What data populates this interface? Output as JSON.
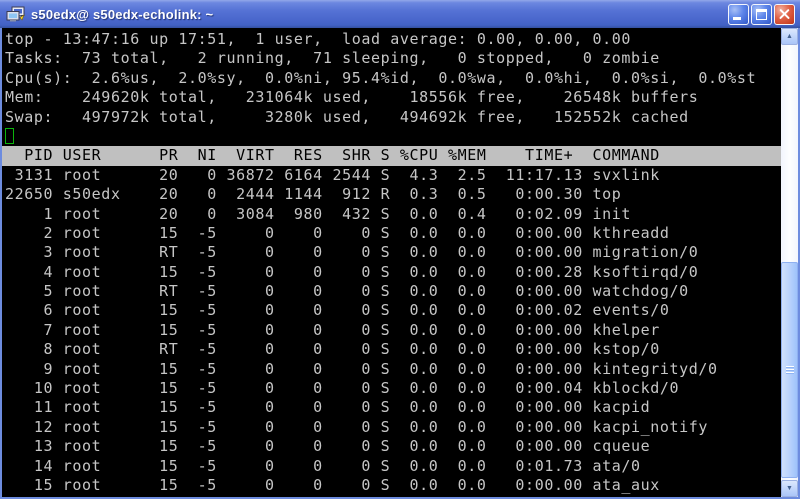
{
  "window": {
    "title": "s50edx@ s50edx-echolink: ~",
    "icons": {
      "app_icon": "putty-two-terminals",
      "minimize": "minimize-bar",
      "maximize": "maximize-box",
      "close": "x-cross",
      "scroll_up": "▲",
      "scroll_down": "▼"
    }
  },
  "terminal": {
    "summary_lines": [
      "top - 13:47:16 up 17:51,  1 user,  load average: 0.00, 0.00, 0.00",
      "Tasks:  73 total,   2 running,  71 sleeping,   0 stopped,   0 zombie",
      "Cpu(s):  2.6%us,  2.0%sy,  0.0%ni, 95.4%id,  0.0%wa,  0.0%hi,  0.0%si,  0.0%st",
      "Mem:    249620k total,   231064k used,    18556k free,    26548k buffers",
      "Swap:   497972k total,     3280k used,   494692k free,   152552k cached"
    ],
    "process_table": {
      "header_line": "  PID USER      PR  NI  VIRT  RES  SHR S %CPU %MEM    TIME+  COMMAND",
      "columns": [
        "PID",
        "USER",
        "PR",
        "NI",
        "VIRT",
        "RES",
        "SHR",
        "S",
        "%CPU",
        "%MEM",
        "TIME+",
        "COMMAND"
      ],
      "rows": [
        [
          "3131",
          "root",
          "20",
          "0",
          "36872",
          "6164",
          "2544",
          "S",
          "4.3",
          "2.5",
          "11:17.13",
          "svxlink"
        ],
        [
          "22650",
          "s50edx",
          "20",
          "0",
          "2444",
          "1144",
          "912",
          "R",
          "0.3",
          "0.5",
          "0:00.30",
          "top"
        ],
        [
          "1",
          "root",
          "20",
          "0",
          "3084",
          "980",
          "432",
          "S",
          "0.0",
          "0.4",
          "0:02.09",
          "init"
        ],
        [
          "2",
          "root",
          "15",
          "-5",
          "0",
          "0",
          "0",
          "S",
          "0.0",
          "0.0",
          "0:00.00",
          "kthreadd"
        ],
        [
          "3",
          "root",
          "RT",
          "-5",
          "0",
          "0",
          "0",
          "S",
          "0.0",
          "0.0",
          "0:00.00",
          "migration/0"
        ],
        [
          "4",
          "root",
          "15",
          "-5",
          "0",
          "0",
          "0",
          "S",
          "0.0",
          "0.0",
          "0:00.28",
          "ksoftirqd/0"
        ],
        [
          "5",
          "root",
          "RT",
          "-5",
          "0",
          "0",
          "0",
          "S",
          "0.0",
          "0.0",
          "0:00.00",
          "watchdog/0"
        ],
        [
          "6",
          "root",
          "15",
          "-5",
          "0",
          "0",
          "0",
          "S",
          "0.0",
          "0.0",
          "0:00.02",
          "events/0"
        ],
        [
          "7",
          "root",
          "15",
          "-5",
          "0",
          "0",
          "0",
          "S",
          "0.0",
          "0.0",
          "0:00.00",
          "khelper"
        ],
        [
          "8",
          "root",
          "RT",
          "-5",
          "0",
          "0",
          "0",
          "S",
          "0.0",
          "0.0",
          "0:00.00",
          "kstop/0"
        ],
        [
          "9",
          "root",
          "15",
          "-5",
          "0",
          "0",
          "0",
          "S",
          "0.0",
          "0.0",
          "0:00.00",
          "kintegrityd/0"
        ],
        [
          "10",
          "root",
          "15",
          "-5",
          "0",
          "0",
          "0",
          "S",
          "0.0",
          "0.0",
          "0:00.04",
          "kblockd/0"
        ],
        [
          "11",
          "root",
          "15",
          "-5",
          "0",
          "0",
          "0",
          "S",
          "0.0",
          "0.0",
          "0:00.00",
          "kacpid"
        ],
        [
          "12",
          "root",
          "15",
          "-5",
          "0",
          "0",
          "0",
          "S",
          "0.0",
          "0.0",
          "0:00.00",
          "kacpi_notify"
        ],
        [
          "13",
          "root",
          "15",
          "-5",
          "0",
          "0",
          "0",
          "S",
          "0.0",
          "0.0",
          "0:00.00",
          "cqueue"
        ],
        [
          "14",
          "root",
          "15",
          "-5",
          "0",
          "0",
          "0",
          "S",
          "0.0",
          "0.0",
          "0:01.73",
          "ata/0"
        ],
        [
          "15",
          "root",
          "15",
          "-5",
          "0",
          "0",
          "0",
          "S",
          "0.0",
          "0.0",
          "0:00.00",
          "ata_aux"
        ]
      ]
    },
    "colors": {
      "background": "#000000",
      "foreground": "#c6c6c6",
      "header_bg": "#c0c0c0",
      "header_fg": "#000000",
      "cursor": "#0cb40c",
      "titlebar_blue": "#4a67cc",
      "close_red": "#e06146"
    }
  }
}
